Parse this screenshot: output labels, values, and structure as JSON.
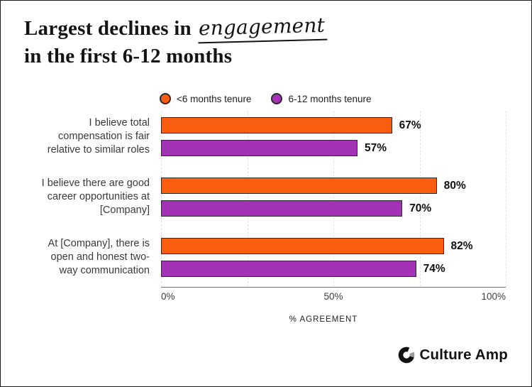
{
  "title": {
    "line1_prefix": "Largest declines in",
    "line1_highlight": "engagement",
    "line2": "in the first 6-12 months"
  },
  "legend": [
    {
      "label": "<6 months tenure",
      "color": "#F85D10"
    },
    {
      "label": "6-12 months tenure",
      "color": "#A233B5"
    }
  ],
  "chart_data": {
    "type": "bar",
    "orientation": "horizontal",
    "title": "Largest declines in engagement in the first 6-12 months",
    "xlabel": "% AGREEMENT",
    "xlim": [
      0,
      100
    ],
    "x_ticks": [
      "0%",
      "50%",
      "100%"
    ],
    "grid": "vertical dashed lines every 25%",
    "legend_position": "top",
    "categories": [
      {
        "lines": [
          "I believe total",
          "compensation is fair",
          "relative to similar roles"
        ]
      },
      {
        "lines": [
          "I believe there are good",
          "career opportunities at",
          "[Company]"
        ]
      },
      {
        "lines": [
          "At [Company], there is",
          "open and honest two-",
          "way communication"
        ]
      }
    ],
    "series": [
      {
        "name": "<6 months tenure",
        "color": "#F85D10",
        "values": [
          67,
          80,
          82
        ],
        "labels": [
          "67%",
          "80%",
          "82%"
        ]
      },
      {
        "name": "6-12 months tenure",
        "color": "#A233B5",
        "values": [
          57,
          70,
          74
        ],
        "labels": [
          "57%",
          "70%",
          "74%"
        ]
      }
    ]
  },
  "footer": {
    "brand": "Culture Amp"
  },
  "colors": {
    "orange": "#F85D10",
    "purple": "#A233B5",
    "bar_outline": "#2b2b2b",
    "axis_line": "#787878",
    "gridline": "#e3e3e3",
    "text_dark": "#141414"
  }
}
